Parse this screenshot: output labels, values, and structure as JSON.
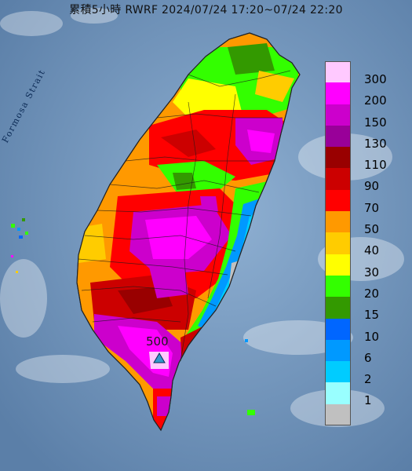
{
  "title": "累積5小時 RWRF 2024/07/24 17:20~07/24 22:20",
  "sea_label": "Formosa Strait",
  "max_label": "500",
  "legend": {
    "bins": [
      {
        "label": "300",
        "color": "#ffc9ff"
      },
      {
        "label": "200",
        "color": "#ff00ff"
      },
      {
        "label": "150",
        "color": "#cc00cc"
      },
      {
        "label": "130",
        "color": "#990099"
      },
      {
        "label": "110",
        "color": "#990000"
      },
      {
        "label": "90",
        "color": "#cc0000"
      },
      {
        "label": "70",
        "color": "#ff0000"
      },
      {
        "label": "50",
        "color": "#ff9900"
      },
      {
        "label": "40",
        "color": "#ffcc00"
      },
      {
        "label": "30",
        "color": "#ffff00"
      },
      {
        "label": "20",
        "color": "#33ff00"
      },
      {
        "label": "15",
        "color": "#339900"
      },
      {
        "label": "10",
        "color": "#0066ff"
      },
      {
        "label": "6",
        "color": "#0099ff"
      },
      {
        "label": "2",
        "color": "#00ccff"
      },
      {
        "label": "1",
        "color": "#99ffff"
      },
      {
        "label": "",
        "color": "#c0c0c0"
      }
    ]
  },
  "colors": {
    "sea": "#6d8fb3",
    "max_marker": "#3399cc"
  }
}
